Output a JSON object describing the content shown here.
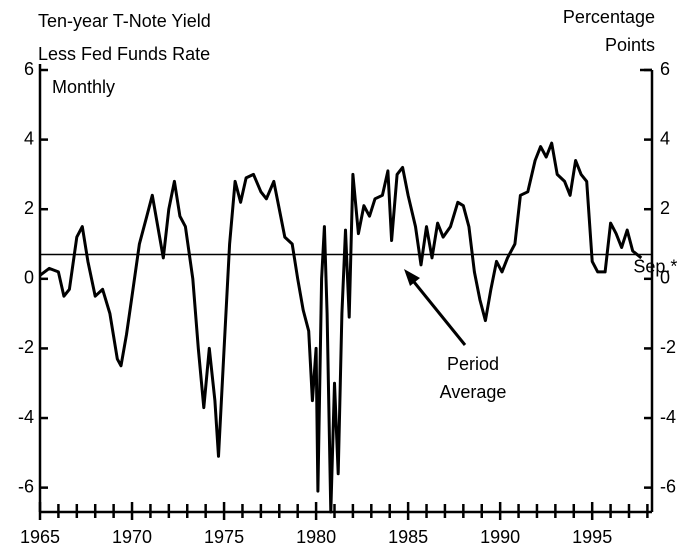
{
  "chart_data": {
    "type": "line",
    "title": [
      "Ten-year T-Note Yield",
      "Less Fed Funds Rate"
    ],
    "subtitle": "Monthly",
    "y2_label": [
      "Percentage",
      "Points"
    ],
    "color": "#000000",
    "x": [
      1965.0,
      1965.5,
      1966.0,
      1966.3,
      1966.6,
      1967.0,
      1967.3,
      1967.6,
      1968.0,
      1968.4,
      1968.8,
      1969.2,
      1969.4,
      1969.7,
      1970.0,
      1970.4,
      1970.8,
      1971.1,
      1971.4,
      1971.7,
      1972.0,
      1972.3,
      1972.6,
      1972.9,
      1973.3,
      1973.6,
      1973.9,
      1974.2,
      1974.5,
      1974.7,
      1975.0,
      1975.3,
      1975.6,
      1975.9,
      1976.2,
      1976.6,
      1977.0,
      1977.3,
      1977.7,
      1978.0,
      1978.3,
      1978.7,
      1979.0,
      1979.3,
      1979.6,
      1979.8,
      1980.0,
      1980.1,
      1980.3,
      1980.45,
      1980.6,
      1980.8,
      1981.0,
      1981.2,
      1981.4,
      1981.6,
      1981.8,
      1982.0,
      1982.3,
      1982.6,
      1982.9,
      1983.2,
      1983.6,
      1983.9,
      1984.1,
      1984.4,
      1984.7,
      1985.0,
      1985.4,
      1985.7,
      1986.0,
      1986.3,
      1986.6,
      1986.9,
      1987.3,
      1987.7,
      1988.0,
      1988.3,
      1988.6,
      1988.9,
      1989.2,
      1989.5,
      1989.8,
      1990.1,
      1990.4,
      1990.8,
      1991.1,
      1991.5,
      1991.9,
      1992.2,
      1992.5,
      1992.8,
      1993.1,
      1993.5,
      1993.8,
      1994.1,
      1994.4,
      1994.7,
      1995.0,
      1995.3,
      1995.7,
      1996.0,
      1996.3,
      1996.6,
      1996.9,
      1997.2,
      1997.67
    ],
    "values": [
      0.1,
      0.3,
      0.2,
      -0.5,
      -0.3,
      1.2,
      1.5,
      0.5,
      -0.5,
      -0.3,
      -1.0,
      -2.3,
      -2.5,
      -1.6,
      -0.5,
      1.0,
      1.8,
      2.4,
      1.5,
      0.6,
      2.0,
      2.8,
      1.8,
      1.5,
      0.0,
      -2.0,
      -3.7,
      -2.0,
      -3.5,
      -5.1,
      -2.0,
      1.0,
      2.8,
      2.2,
      2.9,
      3.0,
      2.5,
      2.3,
      2.8,
      2.0,
      1.2,
      1.0,
      0.0,
      -0.9,
      -1.5,
      -3.5,
      -2.0,
      -6.1,
      0.0,
      1.5,
      -1.0,
      -6.7,
      -3.0,
      -5.6,
      -1.0,
      1.4,
      -1.1,
      3.0,
      1.3,
      2.1,
      1.8,
      2.3,
      2.4,
      3.1,
      1.1,
      3.0,
      3.2,
      2.4,
      1.5,
      0.4,
      1.5,
      0.6,
      1.6,
      1.2,
      1.5,
      2.2,
      2.1,
      1.5,
      0.2,
      -0.6,
      -1.2,
      -0.3,
      0.5,
      0.2,
      0.6,
      1.0,
      2.4,
      2.5,
      3.4,
      3.8,
      3.5,
      3.9,
      3.0,
      2.8,
      2.4,
      3.4,
      3.0,
      2.8,
      0.5,
      0.2,
      0.2,
      1.6,
      1.3,
      0.9,
      1.4,
      0.8,
      0.6
    ],
    "reference_line": {
      "value": 0.7,
      "label": [
        "Period",
        "Average"
      ]
    },
    "end_label": "Sep.*",
    "xlim": [
      1965,
      1998.25
    ],
    "xticks": [
      1965,
      1970,
      1975,
      1980,
      1985,
      1990,
      1995
    ],
    "x_minor_ticks": [
      1966,
      1967,
      1968,
      1969,
      1971,
      1972,
      1973,
      1974,
      1976,
      1977,
      1978,
      1979,
      1981,
      1982,
      1983,
      1984,
      1986,
      1987,
      1988,
      1989,
      1991,
      1992,
      1993,
      1994,
      1996,
      1997,
      1998
    ],
    "ylim": [
      -6.7,
      6
    ],
    "yticks": [
      -6,
      -4,
      -2,
      0,
      2,
      4,
      6
    ],
    "y2lim": [
      -6.7,
      6
    ],
    "y2ticks": [
      -6,
      -4,
      -2,
      0,
      2,
      4,
      6
    ]
  }
}
